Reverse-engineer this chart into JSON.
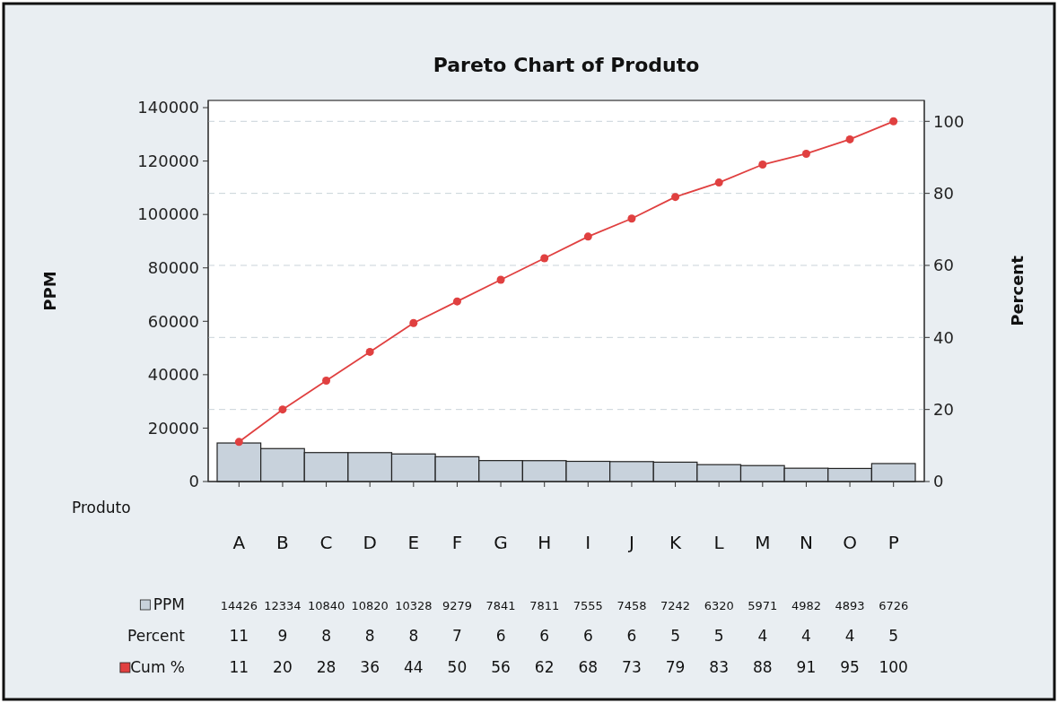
{
  "chart_data": {
    "type": "bar",
    "title": "Pareto Chart of Produto",
    "xlabel": "Produto",
    "ylabel": "PPM",
    "y2label": "Percent",
    "categories": [
      "A",
      "B",
      "C",
      "D",
      "E",
      "F",
      "G",
      "H",
      "I",
      "J",
      "K",
      "L",
      "M",
      "N",
      "O",
      "P"
    ],
    "series": [
      {
        "name": "PPM",
        "color": "#c8d2dc",
        "values": [
          14426,
          12334,
          10840,
          10820,
          10328,
          9279,
          7841,
          7811,
          7555,
          7458,
          7242,
          6320,
          5971,
          4982,
          4893,
          6726
        ]
      },
      {
        "name": "Cum %",
        "type": "line",
        "axis": "y2",
        "color": "#e04040",
        "marker": "circle",
        "values": [
          11,
          20,
          28,
          36,
          44,
          50,
          56,
          62,
          68,
          73,
          79,
          83,
          88,
          91,
          95,
          100
        ]
      }
    ],
    "data_labels": true,
    "annotations": [
      "Percent",
      "11",
      "9",
      "8",
      "8",
      "8",
      "7",
      "6",
      "6",
      "6",
      "6",
      "5",
      "5",
      "4",
      "4",
      "4",
      "5"
    ],
    "ylim": [
      0,
      142700
    ],
    "yticks": [
      0,
      20000,
      40000,
      60000,
      80000,
      100000,
      120000,
      140000
    ],
    "y2lim": [
      0,
      105.8
    ],
    "y2ticks": [
      0,
      20,
      40,
      60,
      80,
      100
    ],
    "grid": "y",
    "legend": "bottom left"
  }
}
